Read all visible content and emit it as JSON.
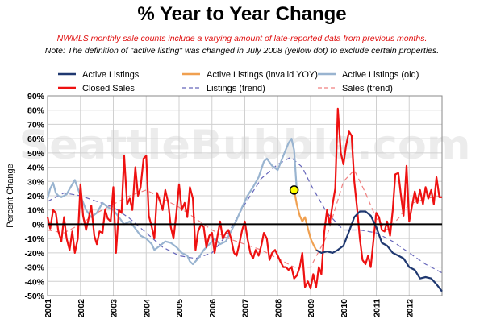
{
  "header": {
    "title": "% Year to Year Change",
    "note1": "NWMLS monthly sale counts include a varying amount of late-reported data from previous months.",
    "note2": "Note: The definition of \"active listing\" was changed in July 2008 (yellow dot) to exclude certain properties."
  },
  "watermark": "SeattleBubble.com",
  "chart_data": {
    "type": "line",
    "ylabel": "Percent Change",
    "xlabel": "",
    "ylim": [
      -50,
      90
    ],
    "xlim": [
      2001,
      2013
    ],
    "yticks": [
      -50,
      -40,
      -30,
      -20,
      -10,
      0,
      10,
      20,
      30,
      40,
      50,
      60,
      70,
      80,
      90
    ],
    "ytick_labels": [
      "-50%",
      "-40%",
      "-30%",
      "-20%",
      "-10%",
      "0%",
      "10%",
      "20%",
      "30%",
      "40%",
      "50%",
      "60%",
      "70%",
      "80%",
      "90%"
    ],
    "xtick_labels": [
      "2001",
      "2002",
      "2003",
      "2004",
      "2005",
      "2006",
      "2007",
      "2008",
      "2009",
      "2010",
      "2011",
      "2012"
    ],
    "grid": true,
    "legend_position": "top",
    "highlight_point": {
      "x": 2008.5,
      "y": 24,
      "color": "#ffff00",
      "label": "July 2008"
    },
    "series": [
      {
        "name": "Active Listings",
        "color": "#1f3870",
        "style": "solid",
        "width": 2.2,
        "points": [
          [
            2009.17,
            -18
          ],
          [
            2009.33,
            -20
          ],
          [
            2009.5,
            -19
          ],
          [
            2009.67,
            -20
          ],
          [
            2009.83,
            -18
          ],
          [
            2010,
            -15
          ],
          [
            2010.17,
            -5
          ],
          [
            2010.33,
            5
          ],
          [
            2010.5,
            9
          ],
          [
            2010.67,
            9
          ],
          [
            2010.83,
            6
          ],
          [
            2011,
            -2
          ],
          [
            2011.17,
            -13
          ],
          [
            2011.33,
            -15
          ],
          [
            2011.5,
            -20
          ],
          [
            2011.67,
            -22
          ],
          [
            2011.83,
            -24
          ],
          [
            2012,
            -30
          ],
          [
            2012.17,
            -32
          ],
          [
            2012.33,
            -38
          ],
          [
            2012.5,
            -37
          ],
          [
            2012.67,
            -38
          ],
          [
            2012.83,
            -42
          ],
          [
            2013,
            -47
          ]
        ]
      },
      {
        "name": "Active Listings (invalid YOY)",
        "color": "#f0a050",
        "style": "solid",
        "width": 2.2,
        "points": [
          [
            2008.5,
            24
          ],
          [
            2008.58,
            14
          ],
          [
            2008.67,
            6
          ],
          [
            2008.75,
            2
          ],
          [
            2008.83,
            5
          ],
          [
            2008.92,
            -3
          ],
          [
            2009,
            -10
          ],
          [
            2009.08,
            -14
          ],
          [
            2009.17,
            -18
          ]
        ]
      },
      {
        "name": "Active Listings (old)",
        "color": "#99b4d0",
        "style": "solid",
        "width": 2.2,
        "points": [
          [
            2001,
            18
          ],
          [
            2001.08,
            25
          ],
          [
            2001.17,
            29
          ],
          [
            2001.25,
            22
          ],
          [
            2001.33,
            20
          ],
          [
            2001.42,
            19
          ],
          [
            2001.58,
            21
          ],
          [
            2001.75,
            28
          ],
          [
            2001.83,
            31
          ],
          [
            2001.92,
            25
          ],
          [
            2002,
            20
          ],
          [
            2002.17,
            10
          ],
          [
            2002.33,
            5
          ],
          [
            2002.5,
            8
          ],
          [
            2002.67,
            15
          ],
          [
            2002.83,
            12
          ],
          [
            2003,
            10
          ],
          [
            2003.17,
            5
          ],
          [
            2003.33,
            0
          ],
          [
            2003.5,
            2
          ],
          [
            2003.67,
            -3
          ],
          [
            2003.83,
            -8
          ],
          [
            2004,
            -10
          ],
          [
            2004.17,
            -14
          ],
          [
            2004.25,
            -18
          ],
          [
            2004.42,
            -15
          ],
          [
            2004.58,
            -12
          ],
          [
            2004.75,
            -13
          ],
          [
            2004.92,
            -16
          ],
          [
            2005.08,
            -20
          ],
          [
            2005.25,
            -22
          ],
          [
            2005.33,
            -26
          ],
          [
            2005.42,
            -28
          ],
          [
            2005.58,
            -24
          ],
          [
            2005.75,
            -18
          ],
          [
            2005.92,
            -14
          ],
          [
            2006.08,
            -10
          ],
          [
            2006.25,
            -14
          ],
          [
            2006.42,
            -12
          ],
          [
            2006.58,
            -5
          ],
          [
            2006.75,
            3
          ],
          [
            2006.92,
            12
          ],
          [
            2007.08,
            20
          ],
          [
            2007.25,
            26
          ],
          [
            2007.42,
            33
          ],
          [
            2007.58,
            44
          ],
          [
            2007.67,
            46
          ],
          [
            2007.83,
            41
          ],
          [
            2008,
            38
          ],
          [
            2008.17,
            48
          ],
          [
            2008.33,
            57
          ],
          [
            2008.42,
            60
          ],
          [
            2008.5,
            52
          ],
          [
            2008.58,
            24
          ]
        ]
      },
      {
        "name": "Closed Sales",
        "color": "#ee1111",
        "style": "solid",
        "width": 2.2,
        "points": [
          [
            2001,
            5
          ],
          [
            2001.08,
            -3
          ],
          [
            2001.17,
            10
          ],
          [
            2001.25,
            8
          ],
          [
            2001.33,
            -5
          ],
          [
            2001.42,
            -12
          ],
          [
            2001.5,
            5
          ],
          [
            2001.58,
            -10
          ],
          [
            2001.67,
            -18
          ],
          [
            2001.75,
            -5
          ],
          [
            2001.83,
            -20
          ],
          [
            2001.92,
            -10
          ],
          [
            2002,
            28
          ],
          [
            2002.08,
            6
          ],
          [
            2002.17,
            -4
          ],
          [
            2002.25,
            4
          ],
          [
            2002.33,
            13
          ],
          [
            2002.42,
            -8
          ],
          [
            2002.5,
            -14
          ],
          [
            2002.58,
            -5
          ],
          [
            2002.67,
            -6
          ],
          [
            2002.75,
            10
          ],
          [
            2002.83,
            4
          ],
          [
            2002.92,
            2
          ],
          [
            2003,
            26
          ],
          [
            2003.08,
            -20
          ],
          [
            2003.17,
            10
          ],
          [
            2003.25,
            8
          ],
          [
            2003.33,
            48
          ],
          [
            2003.42,
            14
          ],
          [
            2003.5,
            18
          ],
          [
            2003.58,
            10
          ],
          [
            2003.67,
            40
          ],
          [
            2003.75,
            20
          ],
          [
            2003.83,
            26
          ],
          [
            2003.92,
            46
          ],
          [
            2004,
            48
          ],
          [
            2004.08,
            6
          ],
          [
            2004.17,
            -2
          ],
          [
            2004.25,
            -10
          ],
          [
            2004.33,
            22
          ],
          [
            2004.42,
            16
          ],
          [
            2004.5,
            10
          ],
          [
            2004.58,
            24
          ],
          [
            2004.67,
            15
          ],
          [
            2004.75,
            -2
          ],
          [
            2004.83,
            -10
          ],
          [
            2004.92,
            8
          ],
          [
            2005,
            28
          ],
          [
            2005.08,
            10
          ],
          [
            2005.17,
            15
          ],
          [
            2005.25,
            5
          ],
          [
            2005.33,
            26
          ],
          [
            2005.42,
            18
          ],
          [
            2005.5,
            -18
          ],
          [
            2005.58,
            -5
          ],
          [
            2005.67,
            0
          ],
          [
            2005.75,
            -2
          ],
          [
            2005.83,
            -16
          ],
          [
            2005.92,
            -8
          ],
          [
            2006,
            -6
          ],
          [
            2006.08,
            -20
          ],
          [
            2006.17,
            -8
          ],
          [
            2006.25,
            2
          ],
          [
            2006.33,
            -10
          ],
          [
            2006.42,
            -6
          ],
          [
            2006.5,
            -4
          ],
          [
            2006.58,
            -10
          ],
          [
            2006.67,
            -20
          ],
          [
            2006.75,
            -22
          ],
          [
            2006.83,
            -14
          ],
          [
            2006.92,
            -4
          ],
          [
            2007,
            2
          ],
          [
            2007.08,
            -10
          ],
          [
            2007.17,
            -20
          ],
          [
            2007.25,
            -24
          ],
          [
            2007.33,
            -18
          ],
          [
            2007.42,
            -22
          ],
          [
            2007.5,
            -15
          ],
          [
            2007.58,
            -6
          ],
          [
            2007.67,
            -10
          ],
          [
            2007.75,
            -25
          ],
          [
            2007.83,
            -20
          ],
          [
            2007.92,
            -18
          ],
          [
            2008,
            -22
          ],
          [
            2008.08,
            -26
          ],
          [
            2008.17,
            -30
          ],
          [
            2008.25,
            -30
          ],
          [
            2008.33,
            -32
          ],
          [
            2008.42,
            -30
          ],
          [
            2008.5,
            -38
          ],
          [
            2008.58,
            -36
          ],
          [
            2008.67,
            -30
          ],
          [
            2008.75,
            -20
          ],
          [
            2008.83,
            -44
          ],
          [
            2008.92,
            -40
          ],
          [
            2009,
            -45
          ],
          [
            2009.08,
            -35
          ],
          [
            2009.17,
            -44
          ],
          [
            2009.25,
            -30
          ],
          [
            2009.33,
            -35
          ],
          [
            2009.42,
            -5
          ],
          [
            2009.5,
            10
          ],
          [
            2009.58,
            0
          ],
          [
            2009.67,
            14
          ],
          [
            2009.75,
            25
          ],
          [
            2009.83,
            81
          ],
          [
            2009.92,
            50
          ],
          [
            2010,
            42
          ],
          [
            2010.08,
            55
          ],
          [
            2010.17,
            65
          ],
          [
            2010.25,
            62
          ],
          [
            2010.33,
            30
          ],
          [
            2010.42,
            10
          ],
          [
            2010.5,
            -10
          ],
          [
            2010.58,
            -25
          ],
          [
            2010.67,
            -28
          ],
          [
            2010.75,
            -22
          ],
          [
            2010.83,
            -30
          ],
          [
            2010.92,
            -10
          ],
          [
            2011,
            8
          ],
          [
            2011.08,
            5
          ],
          [
            2011.17,
            -4
          ],
          [
            2011.25,
            -5
          ],
          [
            2011.33,
            2
          ],
          [
            2011.42,
            -8
          ],
          [
            2011.5,
            10
          ],
          [
            2011.58,
            35
          ],
          [
            2011.67,
            36
          ],
          [
            2011.75,
            20
          ],
          [
            2011.83,
            6
          ],
          [
            2011.92,
            41
          ],
          [
            2012,
            2
          ],
          [
            2012.08,
            12
          ],
          [
            2012.17,
            23
          ],
          [
            2012.25,
            15
          ],
          [
            2012.33,
            24
          ],
          [
            2012.42,
            14
          ],
          [
            2012.5,
            26
          ],
          [
            2012.58,
            18
          ],
          [
            2012.67,
            24
          ],
          [
            2012.75,
            14
          ],
          [
            2012.83,
            33
          ],
          [
            2012.92,
            19
          ],
          [
            2013,
            19
          ]
        ]
      },
      {
        "name": "Listings (trend)",
        "color": "#6666bb",
        "style": "dashed",
        "width": 1.2,
        "points": [
          [
            2001,
            16
          ],
          [
            2001.5,
            22
          ],
          [
            2002,
            20
          ],
          [
            2002.5,
            16
          ],
          [
            2003,
            12
          ],
          [
            2003.5,
            4
          ],
          [
            2004,
            -6
          ],
          [
            2004.5,
            -16
          ],
          [
            2005,
            -22
          ],
          [
            2005.5,
            -24
          ],
          [
            2006,
            -20
          ],
          [
            2006.5,
            -6
          ],
          [
            2007,
            14
          ],
          [
            2007.5,
            32
          ],
          [
            2008,
            42
          ],
          [
            2008.4,
            47
          ],
          [
            2008.75,
            40
          ],
          [
            2009,
            28
          ],
          [
            2009.5,
            8
          ],
          [
            2010,
            -4
          ],
          [
            2010.5,
            -4
          ],
          [
            2011,
            -6
          ],
          [
            2011.5,
            -12
          ],
          [
            2012,
            -20
          ],
          [
            2012.5,
            -28
          ],
          [
            2013,
            -34
          ]
        ]
      },
      {
        "name": "Sales (trend)",
        "color": "#f08080",
        "style": "dashed",
        "width": 1.2,
        "points": [
          [
            2001,
            -4
          ],
          [
            2001.5,
            -6
          ],
          [
            2002,
            0
          ],
          [
            2002.5,
            8
          ],
          [
            2003,
            14
          ],
          [
            2003.5,
            20
          ],
          [
            2004,
            24
          ],
          [
            2004.5,
            18
          ],
          [
            2005,
            12
          ],
          [
            2005.5,
            4
          ],
          [
            2006,
            -4
          ],
          [
            2006.5,
            -10
          ],
          [
            2007,
            -14
          ],
          [
            2007.5,
            -18
          ],
          [
            2008,
            -24
          ],
          [
            2008.5,
            -30
          ],
          [
            2009,
            -30
          ],
          [
            2009.5,
            -8
          ],
          [
            2010,
            30
          ],
          [
            2010.33,
            38
          ],
          [
            2010.67,
            22
          ],
          [
            2011,
            4
          ],
          [
            2011.33,
            -4
          ],
          [
            2011.67,
            4
          ],
          [
            2012,
            14
          ],
          [
            2012.5,
            18
          ],
          [
            2013,
            20
          ]
        ]
      }
    ]
  }
}
